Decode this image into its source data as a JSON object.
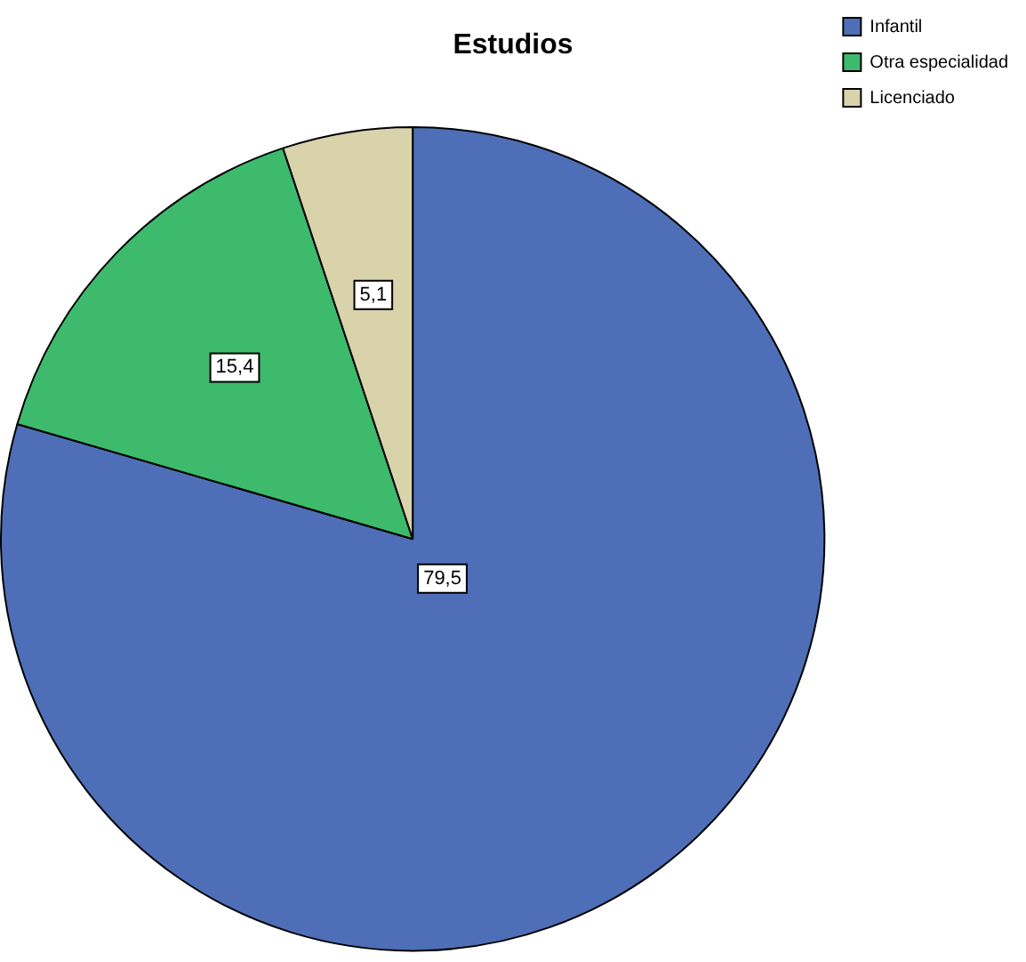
{
  "chart_data": {
    "type": "pie",
    "title": "Estudios",
    "categories": [
      "Infantil",
      "Otra especialidad",
      "Licenciado"
    ],
    "values": [
      79.5,
      15.4,
      5.1
    ],
    "value_labels": [
      "79,5",
      "15,4",
      "5,1"
    ],
    "colors": [
      "#4e6fb7",
      "#3dba6c",
      "#d8d3ab"
    ],
    "legend": "top right"
  }
}
